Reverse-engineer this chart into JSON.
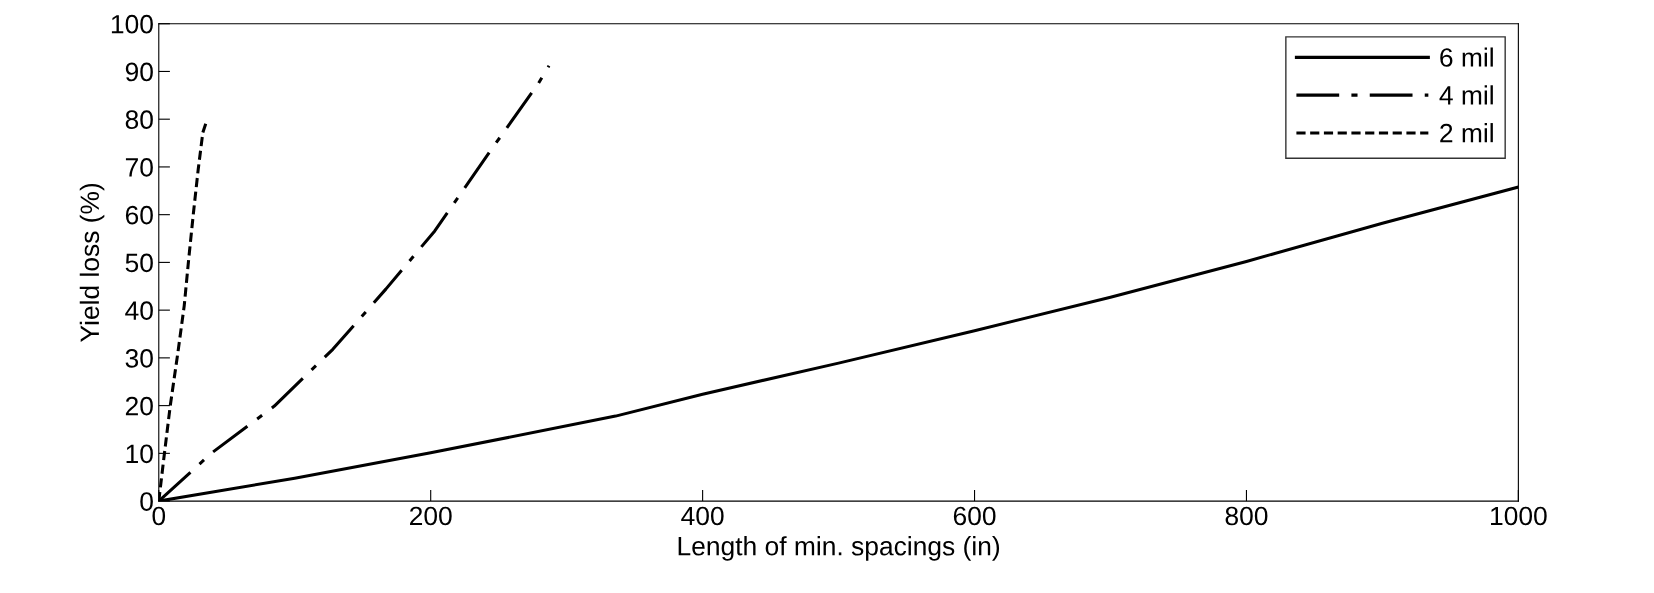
{
  "chart_data": {
    "type": "line",
    "xlabel": "Length of min. spacings (in)",
    "ylabel": "Yield loss (%)",
    "xlim": [
      0,
      1000
    ],
    "xticks": [
      0,
      200,
      400,
      600,
      800,
      1000
    ],
    "ylim": [
      0,
      100
    ],
    "yticks": [
      0,
      10,
      20,
      30,
      40,
      50,
      60,
      70,
      80,
      90,
      100
    ],
    "grid": false,
    "legend": "top right",
    "marker": "none",
    "series": [
      {
        "name": "6 mil",
        "color": "#000000",
        "line_style": "solid",
        "x": [
          0,
          100,
          200,
          336,
          400,
          500,
          600,
          700,
          800,
          900,
          1000
        ],
        "values": [
          0,
          4.8,
          10.1,
          17.8,
          22.4,
          28.9,
          35.7,
          42.7,
          50.2,
          58.2,
          65.8
        ]
      },
      {
        "name": "4 mil",
        "color": "#000000",
        "line_style": "dashdot",
        "x": [
          0,
          39,
          85,
          128,
          167,
          203,
          244,
          279,
          287
        ],
        "values": [
          0,
          10.1,
          19.9,
          31.8,
          44.4,
          56.6,
          73.4,
          87.4,
          91.2
        ]
      },
      {
        "name": "2 mil",
        "color": "#000000",
        "line_style": "dashed",
        "x": [
          0,
          3.9,
          8.4,
          14,
          18.7,
          22,
          25.5,
          29,
          32.4,
          35.3
        ],
        "values": [
          0,
          9.4,
          19.9,
          31,
          40.9,
          50.7,
          60.4,
          69.5,
          77.2,
          79.7
        ]
      }
    ]
  }
}
